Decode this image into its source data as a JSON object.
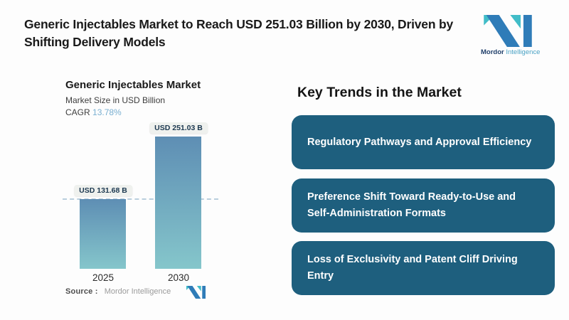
{
  "header": {
    "title": "Generic Injectables Market to Reach USD 251.03 Billion by 2030, Driven by Shifting Delivery Models",
    "logo": {
      "brand": "Mordor",
      "brand_suffix": "Intelligence"
    }
  },
  "chart": {
    "title": "Generic Injectables Market",
    "subtitle": "Market Size in USD Billion",
    "cagr_label": "CAGR",
    "cagr_value": "13.78%",
    "source_label": "Source :",
    "source_value": "Mordor Intelligence"
  },
  "chart_data": {
    "type": "bar",
    "title": "Generic Injectables Market",
    "ylabel": "Market Size in USD Billion",
    "unit": "USD Billion",
    "categories": [
      "2025",
      "2030"
    ],
    "values": [
      131.68,
      251.03
    ],
    "value_labels": [
      "USD 131.68 B",
      "USD 251.03 B"
    ],
    "cagr_percent": 13.78,
    "reference_line": 131.68,
    "ylim": [
      0,
      260
    ],
    "grid": false,
    "legend": "none",
    "bar_gradient": [
      "#5e8eb4",
      "#85c6cb"
    ]
  },
  "trends": {
    "heading": "Key Trends in the Market",
    "cards": [
      {
        "label": "Regulatory Pathways and Approval Efficiency"
      },
      {
        "label": "Preference Shift Toward Ready-to-Use and Self-Administration Formats"
      },
      {
        "label": "Loss of Exclusivity and Patent Cliff Driving Entry"
      }
    ]
  },
  "colors": {
    "card_background": "#1e5f7e",
    "card_text": "#ffffff",
    "bar_gradient_top": "#5e8eb4",
    "bar_gradient_bottom": "#85c6cb",
    "cagr_accent": "#79afd1",
    "dashed_line": "#b9cedd",
    "logo_blue": "#2f7cb8",
    "logo_teal": "#41bdc8",
    "label_box_background": "#eff1ee",
    "label_box_text": "#1c3850"
  }
}
